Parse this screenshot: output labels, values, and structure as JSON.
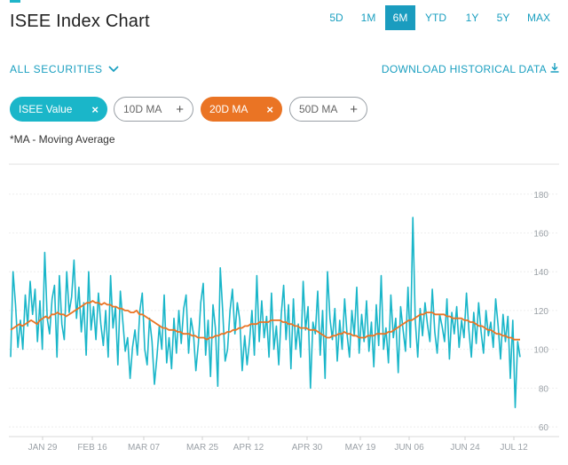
{
  "header": {
    "title": "ISEE Index Chart",
    "range_tabs": [
      {
        "label": "5D",
        "active": false
      },
      {
        "label": "1M",
        "active": false
      },
      {
        "label": "6M",
        "active": true
      },
      {
        "label": "YTD",
        "active": false
      },
      {
        "label": "1Y",
        "active": false
      },
      {
        "label": "5Y",
        "active": false
      },
      {
        "label": "MAX",
        "active": false
      }
    ]
  },
  "controls": {
    "securities_label": "ALL SECURITIES",
    "download_label": "DOWNLOAD HISTORICAL DATA"
  },
  "pills": [
    {
      "label": "ISEE Value",
      "action": "×",
      "selected": true,
      "color": "#1ab6c9"
    },
    {
      "label": "10D MA",
      "action": "+",
      "selected": false
    },
    {
      "label": "20D MA",
      "action": "×",
      "selected": true,
      "color": "#ea7424"
    },
    {
      "label": "50D MA",
      "action": "+",
      "selected": false
    }
  ],
  "note": "*MA - Moving Average",
  "chart_data": {
    "type": "line",
    "x_tick_labels": [
      "JAN 29",
      "FEB 16",
      "MAR 07",
      "MAR 25",
      "APR 12",
      "APR 30",
      "MAY 19",
      "JUN 06",
      "JUN 24",
      "JUL 12"
    ],
    "y_tick_labels": [
      "60",
      "80",
      "100",
      "120",
      "140",
      "160",
      "180"
    ],
    "ylim": [
      55,
      195
    ],
    "grid": true,
    "series": [
      {
        "name": "ISEE Value",
        "color": "#1ab6c9",
        "values": [
          96,
          140,
          123,
          101,
          115,
          100,
          128,
          112,
          135,
          118,
          131,
          104,
          125,
          100,
          150,
          116,
          108,
          126,
          133,
          96,
          138,
          113,
          105,
          140,
          119,
          127,
          146,
          116,
          132,
          109,
          124,
          97,
          140,
          110,
          122,
          105,
          129,
          113,
          102,
          120,
          96,
          138,
          111,
          122,
          92,
          130,
          115,
          99,
          106,
          85,
          101,
          110,
          97,
          120,
          129,
          100,
          92,
          116,
          104,
          82,
          96,
          112,
          100,
          128,
          93,
          106,
          90,
          116,
          98,
          120,
          103,
          121,
          128,
          98,
          116,
          108,
          89,
          103,
          124,
          134,
          97,
          115,
          86,
          123,
          111,
          81,
          142,
          120,
          94,
          100,
          120,
          131,
          108,
          124,
          115,
          89,
          107,
          92,
          104,
          120,
          97,
          138,
          104,
          125,
          106,
          117,
          96,
          129,
          100,
          112,
          92,
          118,
          133,
          105,
          123,
          90,
          126,
          100,
          113,
          96,
          135,
          110,
          122,
          80,
          114,
          108,
          130,
          97,
          120,
          85,
          140,
          116,
          105,
          121,
          94,
          115,
          100,
          126,
          108,
          96,
          120,
          107,
          132,
          98,
          118,
          104,
          125,
          99,
          114,
          91,
          123,
          102,
          138,
          100,
          111,
          93,
          128,
          106,
          116,
          88,
          122,
          110,
          99,
          132,
          101,
          168,
          115,
          96,
          121,
          107,
          124,
          113,
          104,
          131,
          109,
          98,
          118,
          112,
          104,
          126,
          95,
          119,
          108,
          122,
          101,
          115,
          106,
          129,
          110,
          96,
          119,
          103,
          124,
          109,
          98,
          120,
          107,
          114,
          101,
          126,
          112,
          95,
          118,
          104,
          117,
          85,
          115,
          70,
          104,
          96
        ]
      },
      {
        "name": "20D MA",
        "color": "#ea7424",
        "values": [
          110,
          111,
          112,
          113,
          112,
          113,
          114,
          115,
          114,
          113,
          115,
          116,
          117,
          116,
          118,
          118,
          119,
          118,
          118,
          117,
          118,
          119,
          120,
          121,
          122,
          123,
          124,
          124,
          125,
          124,
          124,
          123,
          124,
          123,
          123,
          122,
          122,
          121,
          121,
          120,
          120,
          119,
          119,
          120,
          118,
          118,
          117,
          116,
          115,
          114,
          113,
          112,
          111,
          111,
          110,
          110,
          110,
          109,
          109,
          108,
          108,
          108,
          107,
          107,
          106,
          106,
          106,
          105,
          106,
          106,
          107,
          107,
          108,
          108,
          109,
          109,
          110,
          110,
          111,
          111,
          112,
          112,
          113,
          113,
          113,
          114,
          114,
          114,
          114,
          115,
          115,
          115,
          115,
          114,
          114,
          113,
          113,
          112,
          112,
          111,
          111,
          111,
          110,
          110,
          110,
          109,
          108,
          107,
          106,
          106,
          107,
          107,
          108,
          108,
          109,
          108,
          108,
          107,
          107,
          106,
          106,
          106,
          107,
          107,
          107,
          108,
          108,
          108,
          108,
          109,
          109,
          110,
          111,
          112,
          113,
          114,
          115,
          115,
          116,
          117,
          118,
          118,
          119,
          119,
          119,
          118,
          118,
          118,
          118,
          117,
          117,
          116,
          116,
          116,
          116,
          115,
          115,
          114,
          114,
          113,
          112,
          112,
          111,
          110,
          110,
          109,
          108,
          108,
          107,
          107,
          106,
          106,
          105,
          105,
          105
        ]
      }
    ]
  }
}
